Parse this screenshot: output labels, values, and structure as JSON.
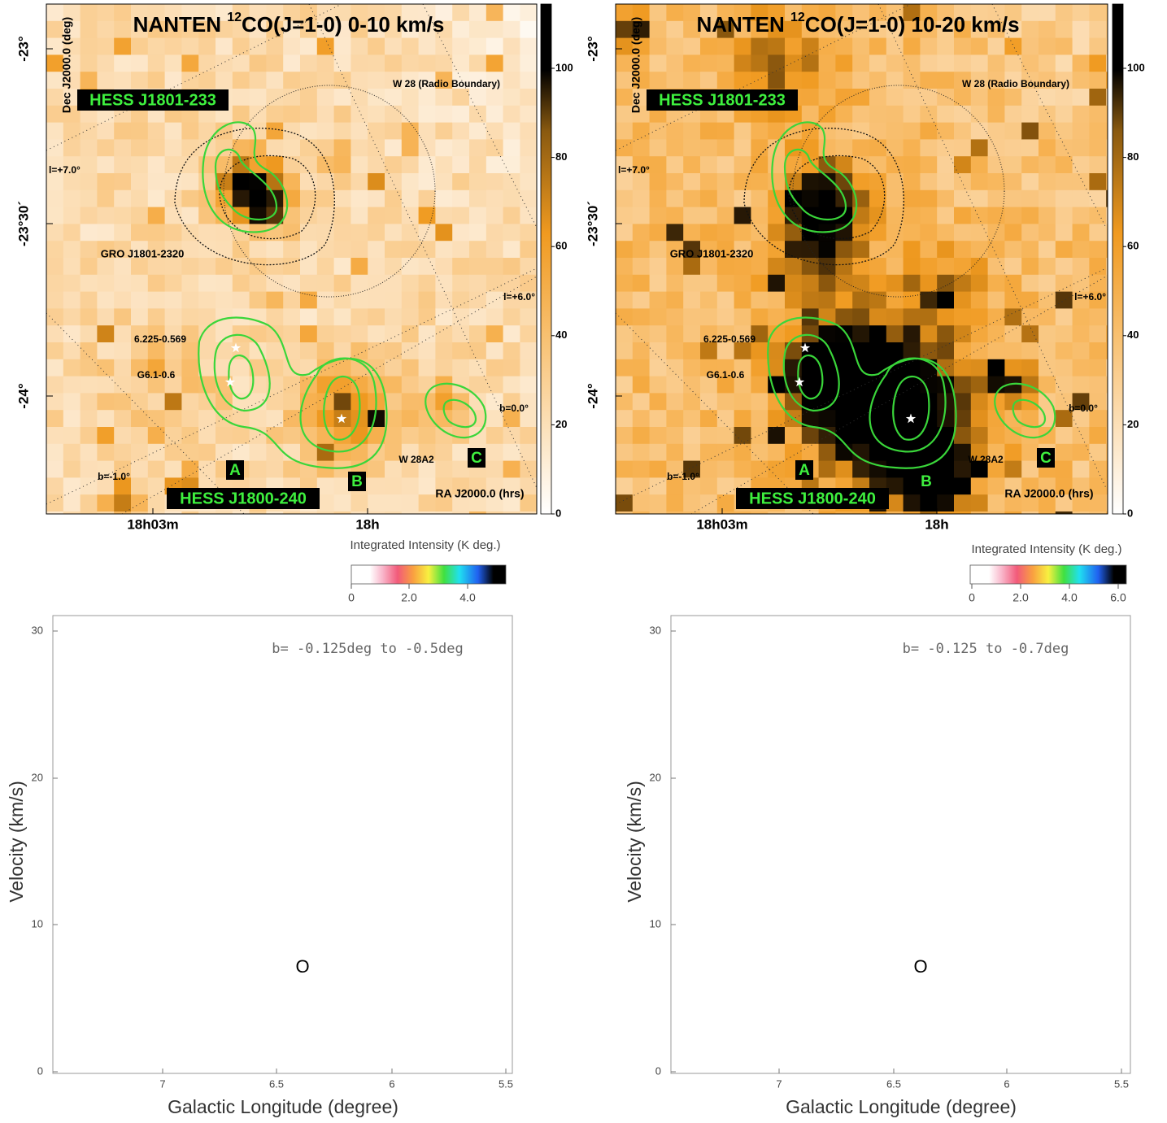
{
  "top_panels": [
    {
      "title": {
        "prefix": "NANTEN ",
        "superscript": "12",
        "suffix": "CO(J=1-0)  0-10 km/s"
      },
      "annotations": {
        "w28": "W 28 (Radio Boundary)",
        "gro": "GRO J1801-2320",
        "l_plus7": "l=+7.0°",
        "l_plus6": "l=+6.0°",
        "src_6225": "6.225-0.569",
        "src_g61": "G6.1-0.6",
        "b_0": "b=0.0°",
        "b_minus1": "b=-1.0°",
        "w28a2": "W 28A2",
        "region_a": "A",
        "region_b": "B",
        "region_c": "C"
      },
      "sources": {
        "hess_north": "HESS J1801-233",
        "hess_south": "HESS J1800-240"
      },
      "x_axis_label": "RA J2000.0 (hrs)",
      "y_axis_label": "Dec J2000.0 (deg)",
      "yticks": [
        "-23°",
        "-23°30´",
        "-24°"
      ],
      "xticks": [
        "18h03m",
        "18h"
      ],
      "colorbar": {
        "ticks": [
          "0",
          "20",
          "40",
          "60",
          "80",
          "100"
        ],
        "label": "Integrated Intensity (K deg.)"
      }
    },
    {
      "title": {
        "prefix": "NANTEN ",
        "superscript": "12",
        "suffix": "CO(J=1-0)  10-20 km/s"
      },
      "annotations": {
        "w28": "W 28 (Radio Boundary)",
        "gro": "GRO J1801-2320",
        "l_plus7": "l=+7.0°",
        "l_plus6": "l=+6.0°",
        "src_6225": "6.225-0.569",
        "src_g61": "G6.1-0.6",
        "b_0": "b=0.0°",
        "b_minus1": "b=-1.0°",
        "w28a2": "W 28A2",
        "region_a": "A",
        "region_b": "B",
        "region_c": "C"
      },
      "sources": {
        "hess_north": "HESS J1801-233",
        "hess_south": "HESS J1800-240"
      },
      "x_axis_label": "RA J2000.0 (hrs)",
      "y_axis_label": "Dec J2000.0 (deg)",
      "yticks": [
        "-23°",
        "-23°30´",
        "-24°"
      ],
      "xticks": [
        "18h03m",
        "18h"
      ],
      "colorbar": {
        "ticks": [
          "0",
          "20",
          "40",
          "60",
          "80",
          "100"
        ],
        "label": "Integrated Intensity (K deg.)"
      }
    }
  ],
  "bottom_panels": [
    {
      "annotation": "b= -0.125deg to -0.5deg",
      "marker": "O",
      "x_axis_label": "Galactic Longitude (degree)",
      "y_axis_label": "Velocity (km/s)",
      "xticks": [
        "7",
        "6.5",
        "6",
        "5.5"
      ],
      "yticks": [
        "0",
        "10",
        "20",
        "30"
      ],
      "colorbar_ticks": [
        "0",
        "2.0",
        "4.0"
      ]
    },
    {
      "annotation": "b= -0.125 to -0.7deg",
      "marker": "O",
      "x_axis_label": "Galactic Longitude (degree)",
      "y_axis_label": "Velocity (km/s)",
      "xticks": [
        "7",
        "6.5",
        "6",
        "5.5"
      ],
      "yticks": [
        "0",
        "10",
        "20",
        "30"
      ],
      "colorbar_ticks": [
        "0",
        "2.0",
        "4.0",
        "6.0"
      ]
    }
  ]
}
